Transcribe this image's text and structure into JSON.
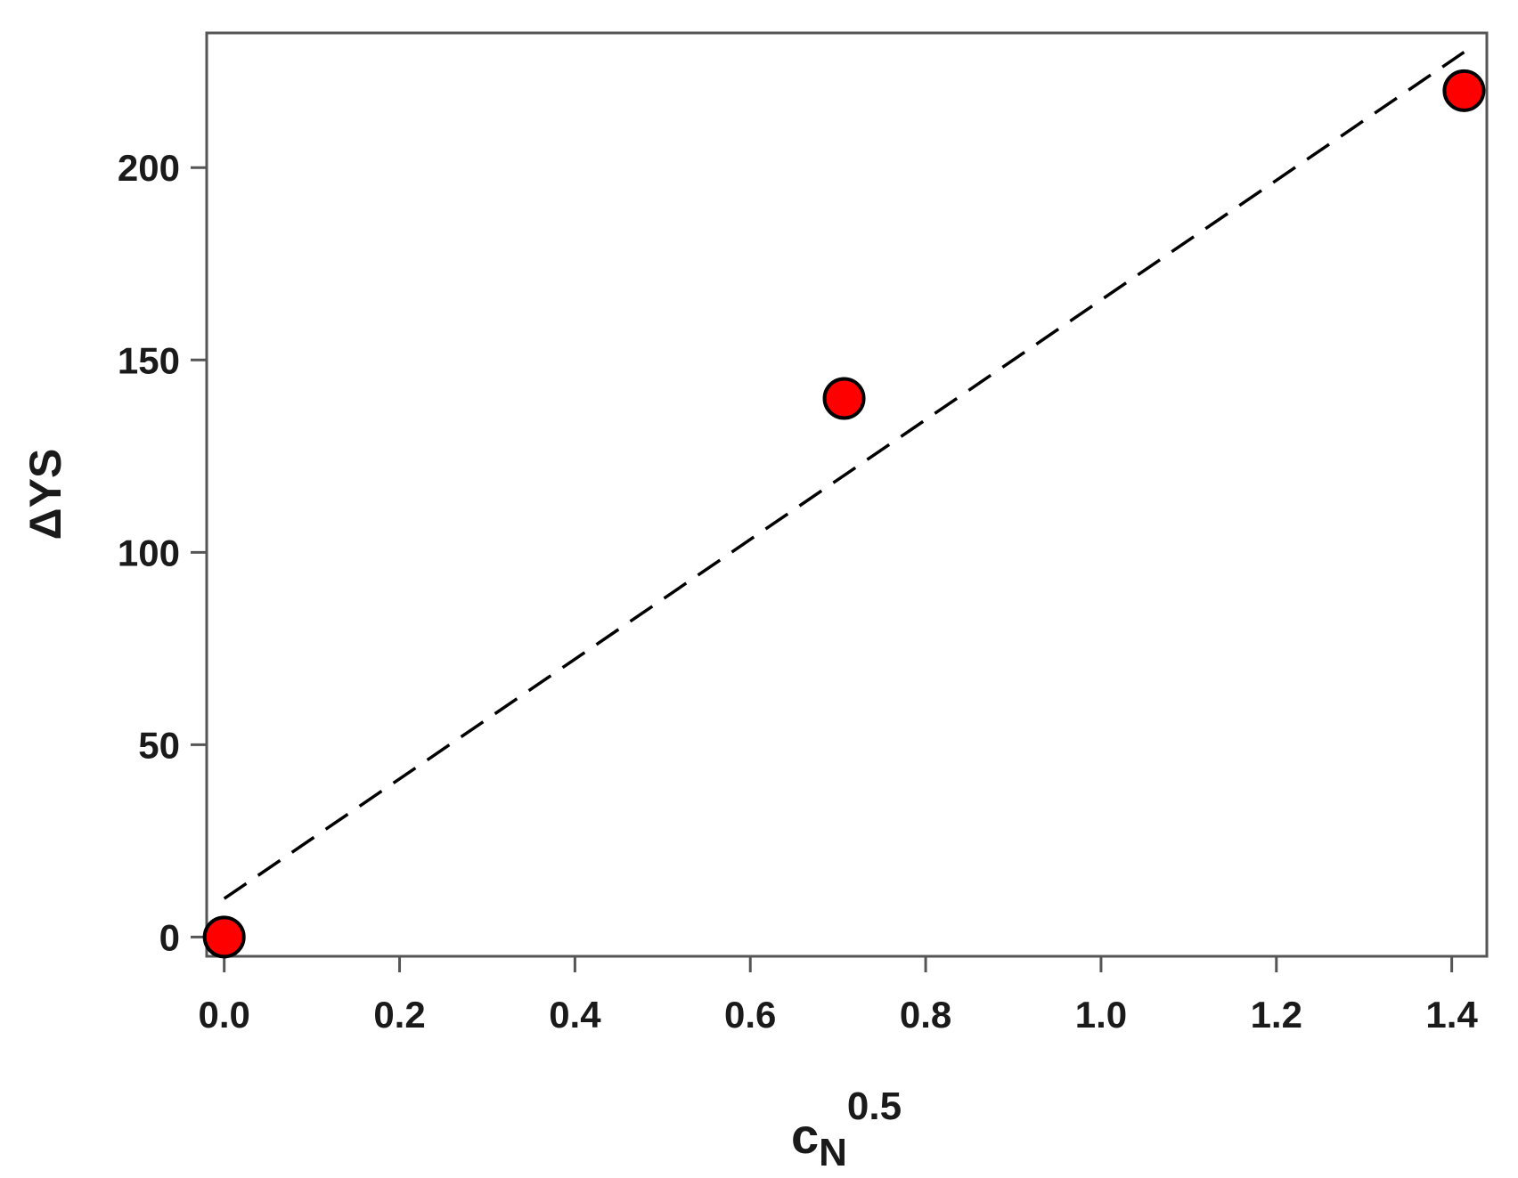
{
  "chart_data": {
    "type": "scatter",
    "title": "",
    "xlabel": {
      "base": "c",
      "subscript": "N",
      "superscript": "0.5"
    },
    "ylabel": "ΔYS",
    "xlim": [
      -0.02,
      1.44
    ],
    "ylim": [
      -5,
      235
    ],
    "xticks": [
      0.0,
      0.2,
      0.4,
      0.6,
      0.8,
      1.0,
      1.2,
      1.4
    ],
    "xtick_labels": [
      "0.0",
      "0.2",
      "0.4",
      "0.6",
      "0.8",
      "1.0",
      "1.2",
      "1.4"
    ],
    "yticks": [
      0,
      50,
      100,
      150,
      200
    ],
    "ytick_labels": [
      "0",
      "50",
      "100",
      "150",
      "200"
    ],
    "grid": false,
    "series": [
      {
        "kind": "points",
        "marker": "circle",
        "color": "#ff0000",
        "edge_color": "#000000",
        "x": [
          0.0,
          0.707,
          1.414
        ],
        "y": [
          0,
          140,
          220
        ]
      },
      {
        "kind": "fit-line",
        "style": "dashed",
        "color": "#000000",
        "x": [
          0.0,
          1.414
        ],
        "y": [
          10,
          230
        ]
      }
    ]
  }
}
